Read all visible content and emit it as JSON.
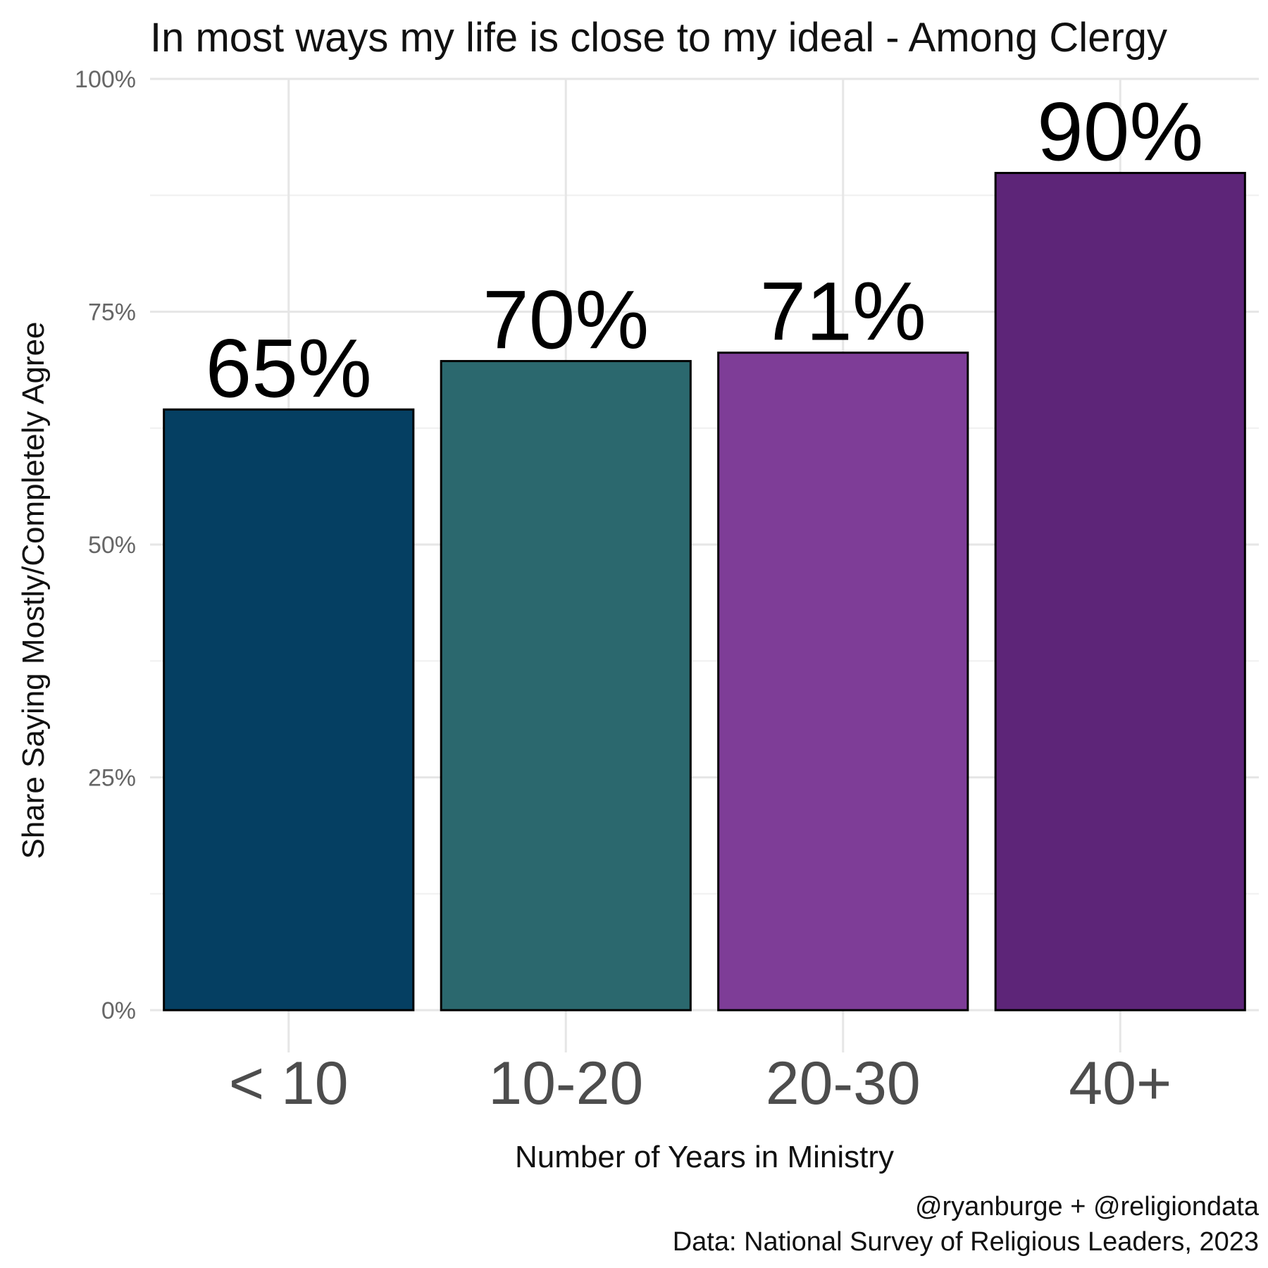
{
  "chart_data": {
    "type": "bar",
    "title": "In most ways my life is close to my ideal - Among Clergy",
    "xlabel": "Number of Years in Ministry",
    "ylabel": "Share Saying Mostly/Completely Agree",
    "categories": [
      "< 10",
      "10-20",
      "20-30",
      "40+"
    ],
    "values": [
      0.645,
      0.697,
      0.706,
      0.899
    ],
    "data_labels": [
      "65%",
      "70%",
      "71%",
      "90%"
    ],
    "colors": [
      "#053f62",
      "#2b686e",
      "#7e3d97",
      "#5d2578"
    ],
    "ylim": [
      0,
      1
    ],
    "yticks": [
      0,
      0.25,
      0.5,
      0.75,
      1.0
    ],
    "ytick_labels": [
      "0%",
      "25%",
      "50%",
      "75%",
      "100%"
    ],
    "grid": true,
    "legend": "none"
  },
  "caption": {
    "line1": "@ryanburge + @religiondata",
    "line2": "Data: National Survey of Religious Leaders, 2023"
  }
}
